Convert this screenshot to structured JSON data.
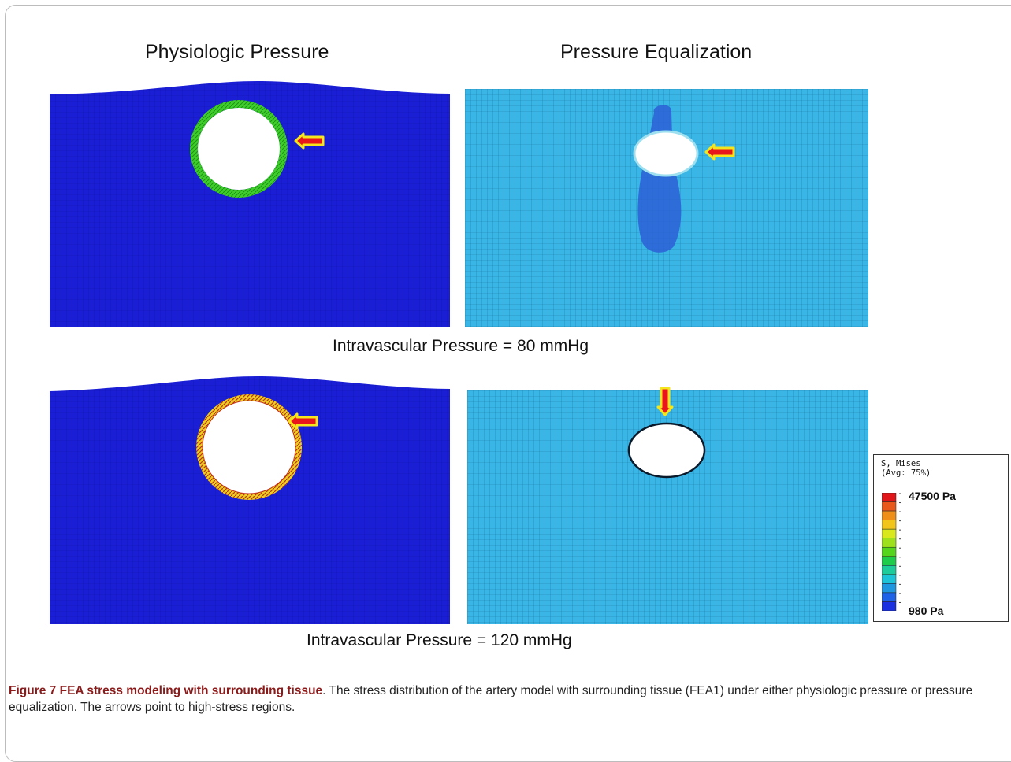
{
  "figure": {
    "column_titles": [
      "Physiologic Pressure",
      "Pressure Equalization"
    ],
    "row_labels": [
      "Intravascular Pressure = 80 mmHg",
      "Intravascular Pressure = 120 mmHg"
    ],
    "legend": {
      "title_line1": "S, Mises",
      "title_line2": "(Avg: 75%)",
      "max_label": "47500 Pa",
      "min_label": "980 Pa",
      "colors": [
        "#e0151a",
        "#e8581a",
        "#ef8f17",
        "#f2c51b",
        "#d9e81c",
        "#9fe01c",
        "#55d61c",
        "#1ccc4a",
        "#1ccc9a",
        "#1cc4d8",
        "#1c97e0",
        "#1c63e8",
        "#1a2fe0"
      ]
    },
    "colors": {
      "tissue_low": "#1a1fd6",
      "tissue_mid": "#3ab6e6",
      "arrow_fill": "#e8151a",
      "arrow_outline": "#f5e51c"
    },
    "panels": [
      {
        "id": "physio-80",
        "stress_ring": "green"
      },
      {
        "id": "equal-80",
        "stress_ring": "light"
      },
      {
        "id": "physio-120",
        "stress_ring": "red-yellow"
      },
      {
        "id": "equal-120",
        "stress_ring": "thin"
      }
    ]
  },
  "caption": {
    "lead": "Figure 7 FEA stress modeling with surrounding tissue",
    "text": ". The stress distribution of the artery model with surrounding tissue (FEA1) under either physiologic pressure or pressure equalization. The arrows point to high-stress regions."
  }
}
